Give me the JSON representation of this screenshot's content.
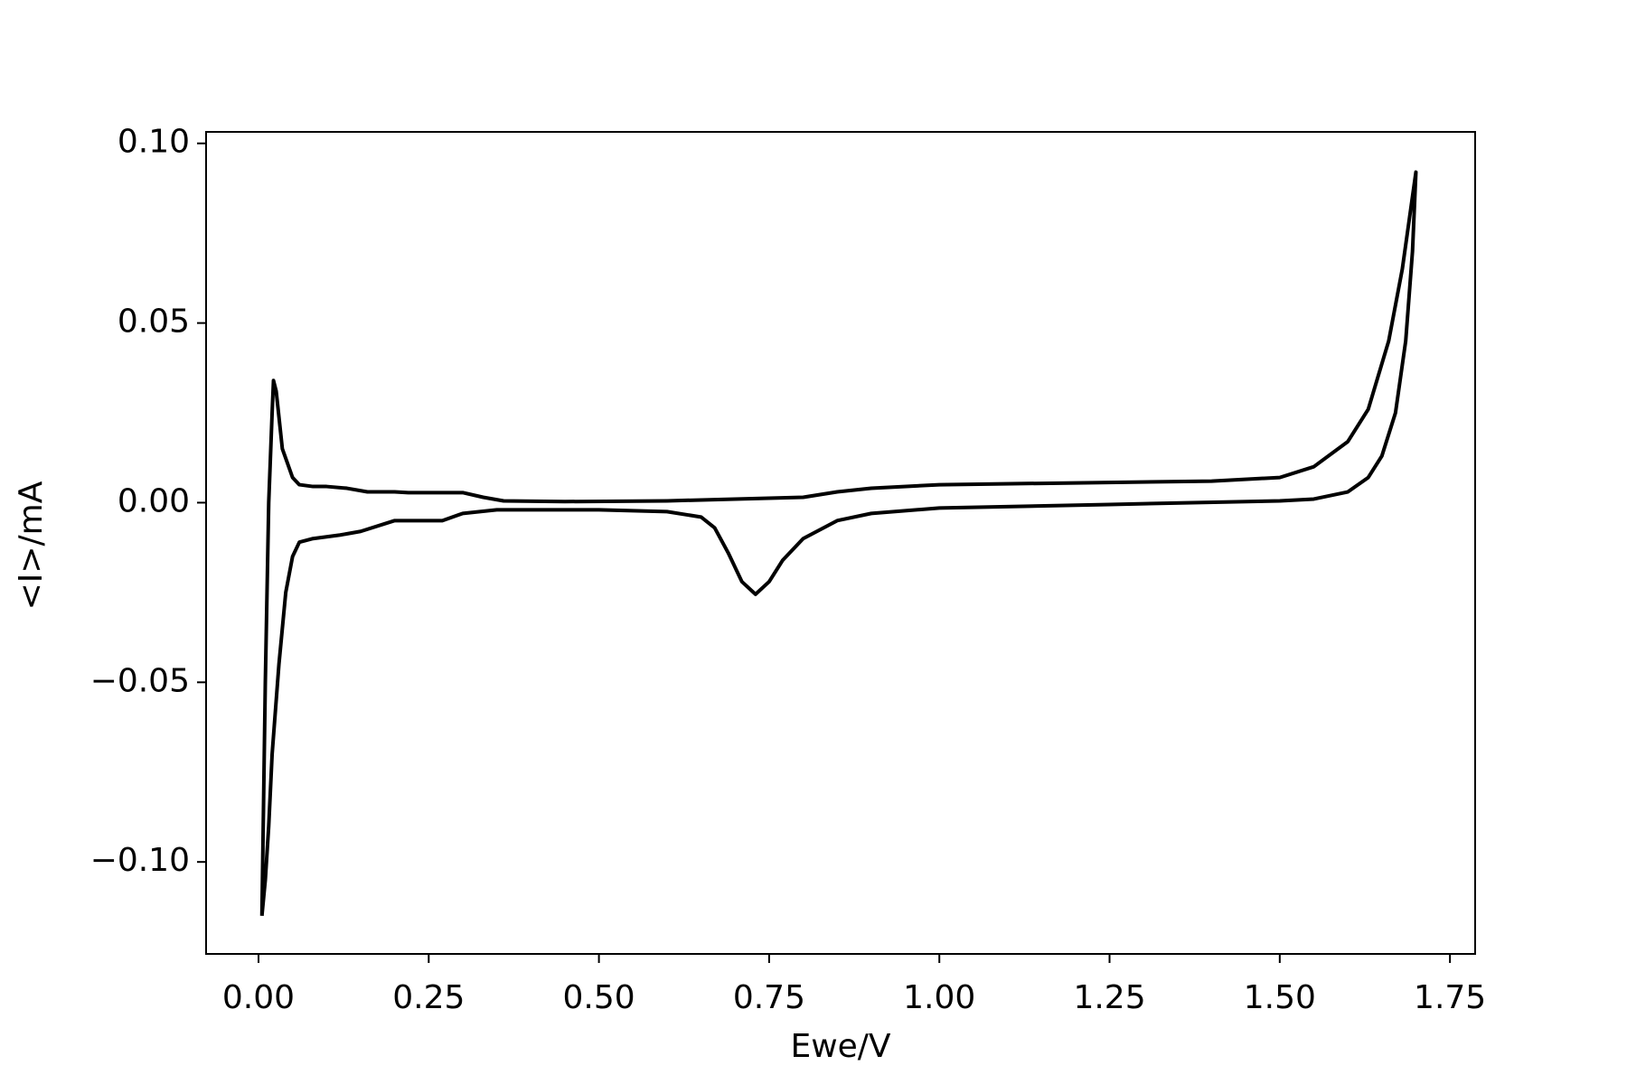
{
  "chart_data": {
    "type": "line",
    "x_label": "Ewe/V",
    "y_label": "<I>/mA",
    "color": "#000000",
    "x": [
      0.005,
      0.01,
      0.015,
      0.02,
      0.022,
      0.026,
      0.035,
      0.05,
      0.06,
      0.08,
      0.1,
      0.13,
      0.16,
      0.2,
      0.22,
      0.25,
      0.3,
      0.33,
      0.36,
      0.45,
      0.6,
      0.7,
      0.8,
      0.85,
      0.9,
      1.0,
      1.2,
      1.4,
      1.5,
      1.55,
      1.6,
      1.63,
      1.66,
      1.68,
      1.7,
      1.695,
      1.685,
      1.67,
      1.65,
      1.63,
      1.6,
      1.55,
      1.5,
      1.25,
      1.0,
      0.9,
      0.85,
      0.8,
      0.77,
      0.75,
      0.73,
      0.71,
      0.69,
      0.67,
      0.65,
      0.6,
      0.5,
      0.35,
      0.3,
      0.27,
      0.2,
      0.15,
      0.12,
      0.08,
      0.06,
      0.05,
      0.04,
      0.03,
      0.02,
      0.015,
      0.01,
      0.005
    ],
    "values": [
      -0.115,
      -0.05,
      0.0,
      0.025,
      0.034,
      0.031,
      0.015,
      0.007,
      0.005,
      0.0045,
      0.0045,
      0.004,
      0.003,
      0.003,
      0.0028,
      0.0028,
      0.0028,
      0.0015,
      0.0005,
      0.0003,
      0.0005,
      0.001,
      0.0015,
      0.003,
      0.004,
      0.005,
      0.0055,
      0.006,
      0.007,
      0.01,
      0.017,
      0.026,
      0.045,
      0.065,
      0.092,
      0.07,
      0.045,
      0.025,
      0.013,
      0.007,
      0.003,
      0.001,
      0.0005,
      -0.0005,
      -0.0015,
      -0.003,
      -0.005,
      -0.01,
      -0.016,
      -0.022,
      -0.0255,
      -0.022,
      -0.014,
      -0.007,
      -0.004,
      -0.0025,
      -0.002,
      -0.002,
      -0.003,
      -0.005,
      -0.005,
      -0.008,
      -0.009,
      -0.01,
      -0.011,
      -0.015,
      -0.025,
      -0.045,
      -0.07,
      -0.09,
      -0.105,
      -0.115
    ],
    "xlim": [
      -0.077,
      1.787
    ],
    "ylim": [
      -0.1256,
      0.1032
    ],
    "xticks": [
      {
        "value": 0,
        "label": "0.00"
      },
      {
        "value": 0.25,
        "label": "0.25"
      },
      {
        "value": 0.5,
        "label": "0.50"
      },
      {
        "value": 0.75,
        "label": "0.75"
      },
      {
        "value": 1,
        "label": "1.00"
      },
      {
        "value": 1.25,
        "label": "1.25"
      },
      {
        "value": 1.5,
        "label": "1.50"
      },
      {
        "value": 1.75,
        "label": "1.75"
      }
    ],
    "yticks": [
      {
        "value": -0.1,
        "label": "−0.10"
      },
      {
        "value": -0.05,
        "label": "−0.05"
      },
      {
        "value": 0,
        "label": "0.00"
      },
      {
        "value": 0.05,
        "label": "0.05"
      },
      {
        "value": 0.1,
        "label": "0.10"
      }
    ]
  }
}
